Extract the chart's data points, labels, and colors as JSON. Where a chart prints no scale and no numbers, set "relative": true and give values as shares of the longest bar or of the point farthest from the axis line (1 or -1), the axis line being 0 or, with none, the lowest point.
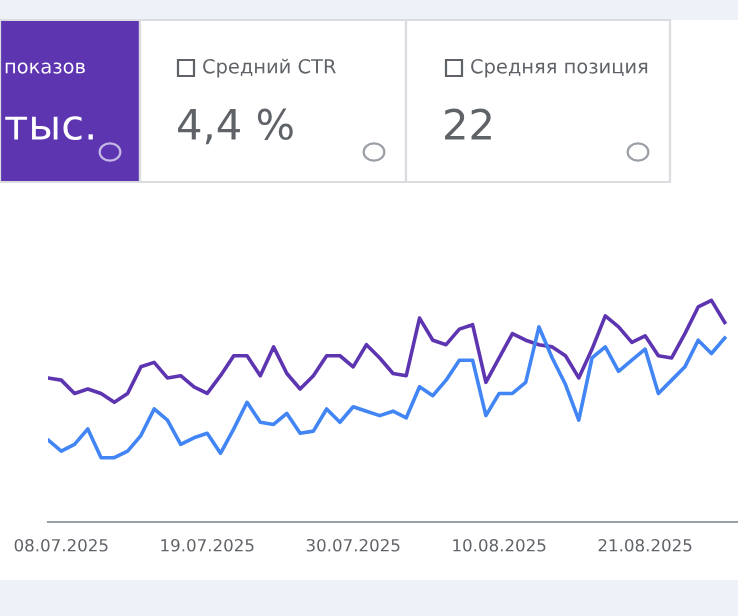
{
  "chart_data": {
    "type": "line",
    "relative": true,
    "annotations": [
      "показов",
      "тыс.",
      "Средний CTR",
      "4,4 %",
      "Средняя позиция",
      "22"
    ],
    "x": [
      "2025-07-07",
      "2025-07-08",
      "2025-07-09",
      "2025-07-10",
      "2025-07-11",
      "2025-07-12",
      "2025-07-13",
      "2025-07-14",
      "2025-07-15",
      "2025-07-16",
      "2025-07-17",
      "2025-07-18",
      "2025-07-19",
      "2025-07-20",
      "2025-07-21",
      "2025-07-22",
      "2025-07-23",
      "2025-07-24",
      "2025-07-25",
      "2025-07-26",
      "2025-07-27",
      "2025-07-28",
      "2025-07-29",
      "2025-07-30",
      "2025-07-31",
      "2025-08-01",
      "2025-08-02",
      "2025-08-03",
      "2025-08-04",
      "2025-08-05",
      "2025-08-06",
      "2025-08-07",
      "2025-08-08",
      "2025-08-09",
      "2025-08-10",
      "2025-08-11",
      "2025-08-12",
      "2025-08-13",
      "2025-08-14",
      "2025-08-15",
      "2025-08-16",
      "2025-08-17",
      "2025-08-18",
      "2025-08-19",
      "2025-08-20",
      "2025-08-21",
      "2025-08-22",
      "2025-08-23",
      "2025-08-24",
      "2025-08-25",
      "2025-08-26",
      "2025-08-27"
    ],
    "xlim": [
      "2025-07-07",
      "2025-08-28"
    ],
    "xticks": [
      {
        "value": "2025-07-08",
        "label": "08.07.2025"
      },
      {
        "value": "2025-07-19",
        "label": "19.07.2025"
      },
      {
        "value": "2025-07-30",
        "label": "30.07.2025"
      },
      {
        "value": "2025-08-10",
        "label": "10.08.2025"
      },
      {
        "value": "2025-08-21",
        "label": "21.08.2025"
      }
    ],
    "marker": "none",
    "line_style": "solid",
    "series": [
      {
        "color": "#5e35b1",
        "values": [
          0.65,
          0.64,
          0.58,
          0.6,
          0.58,
          0.54,
          0.58,
          0.7,
          0.72,
          0.65,
          0.66,
          0.61,
          0.58,
          0.66,
          0.75,
          0.75,
          0.66,
          0.79,
          0.67,
          0.6,
          0.66,
          0.75,
          0.75,
          0.7,
          0.8,
          0.74,
          0.67,
          0.66,
          0.92,
          0.82,
          0.8,
          0.87,
          0.89,
          0.63,
          0.74,
          0.85,
          0.82,
          0.8,
          0.79,
          0.75,
          0.65,
          0.78,
          0.93,
          0.88,
          0.81,
          0.84,
          0.75,
          0.74,
          0.85,
          0.97,
          1.0,
          0.9
        ]
      },
      {
        "color": "#4285f4",
        "values": [
          0.37,
          0.32,
          0.35,
          0.42,
          0.29,
          0.29,
          0.32,
          0.39,
          0.51,
          0.46,
          0.35,
          0.38,
          0.4,
          0.31,
          0.42,
          0.54,
          0.45,
          0.44,
          0.49,
          0.4,
          0.41,
          0.51,
          0.45,
          0.52,
          0.5,
          0.48,
          0.5,
          0.47,
          0.61,
          0.57,
          0.64,
          0.73,
          0.73,
          0.48,
          0.58,
          0.58,
          0.63,
          0.88,
          0.74,
          0.62,
          0.46,
          0.74,
          0.79,
          0.68,
          0.73,
          0.78,
          0.58,
          0.64,
          0.7,
          0.82,
          0.76,
          0.83
        ]
      }
    ]
  }
}
